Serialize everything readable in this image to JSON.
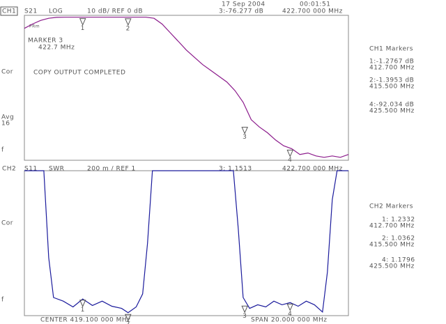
{
  "header": {
    "date": "17 Sep 2004",
    "time": "00:01:51"
  },
  "chart_data": [
    {
      "type": "line",
      "channel": "CH1",
      "parameter": "S21",
      "format": "LOG",
      "scale": "10 dB/ REF 0 dB",
      "readout": [
        "3:-76.277 dB",
        "422.700 000 MHz"
      ],
      "annotations": [
        "PRm",
        "MARKER 3",
        "422.7 MHz",
        "COPY OUTPUT COMPLETED"
      ],
      "side_labels": [
        "Cor",
        "Avg",
        "16",
        "f"
      ],
      "marker_panel": {
        "title": "CH1 Markers",
        "lines": [
          "1:-1.2767 dB",
          "412.700 MHz",
          "2:-1.3953 dB",
          "415.500 MHz",
          "4:-92.034 dB",
          "425.500 MHz"
        ]
      },
      "xlim": [
        409.1,
        429.1
      ],
      "ylim": [
        -100,
        0
      ],
      "x": [
        409.1,
        409.6,
        410.1,
        410.6,
        411.1,
        411.6,
        412.1,
        412.6,
        413.1,
        413.6,
        414.1,
        414.6,
        415.1,
        415.6,
        416.1,
        416.6,
        417.1,
        417.6,
        418.1,
        418.6,
        419.1,
        419.6,
        420.1,
        420.6,
        421.1,
        421.6,
        422.1,
        422.6,
        423.1,
        423.6,
        424.1,
        424.6,
        425.1,
        425.6,
        426.1,
        426.6,
        427.1,
        427.6,
        428.1,
        428.6,
        429.1
      ],
      "series": [
        {
          "color": "#8b1a8b",
          "values": [
            -9,
            -6,
            -3.5,
            -2,
            -1.4,
            -1.3,
            -1.3,
            -1.3,
            -1.3,
            -1.3,
            -1.3,
            -1.3,
            -1.3,
            -1.3,
            -1.3,
            -1.3,
            -2,
            -6,
            -12,
            -18,
            -24,
            -29,
            -34,
            -38,
            -42,
            -46,
            -52,
            -60,
            -72,
            -77,
            -81,
            -86,
            -90,
            -92,
            -96,
            -95,
            -97,
            -98,
            -97,
            -98,
            -96
          ]
        }
      ],
      "markers": [
        {
          "label": "1",
          "x": 412.7,
          "y": -1.2767
        },
        {
          "label": "2",
          "x": 415.5,
          "y": -1.3953
        },
        {
          "label": "3",
          "x": 422.7,
          "y": -76.277
        },
        {
          "label": "4",
          "x": 425.5,
          "y": -92.034
        }
      ]
    },
    {
      "type": "line",
      "channel": "CH2",
      "parameter": "S11",
      "format": "SWR",
      "scale": "200 m / REF 1",
      "readout": [
        "3: 1.1513",
        "422.700 000 MHz"
      ],
      "annotations": [],
      "side_labels": [
        "Cor",
        "f"
      ],
      "marker_panel": {
        "title": "CH2 Markers",
        "lines": [
          "1: 1.2332",
          "412.700 MHz",
          "2: 1.0362",
          "415.500 MHz",
          "4: 1.1796",
          "425.500 MHz"
        ]
      },
      "xlim": [
        409.1,
        429.1
      ],
      "ylim": [
        1,
        3
      ],
      "x": [
        409.1,
        410.3,
        410.6,
        410.9,
        411.5,
        412.1,
        412.7,
        413.3,
        413.9,
        414.5,
        415.1,
        415.5,
        416.0,
        416.4,
        416.7,
        417.0,
        419.5,
        422.0,
        422.3,
        422.6,
        423.0,
        423.5,
        424.0,
        424.5,
        425.0,
        425.5,
        426.0,
        426.5,
        427.0,
        427.5,
        427.8,
        428.1,
        428.4,
        429.1
      ],
      "series": [
        {
          "color": "#1a1a9c",
          "values": [
            3,
            3,
            1.8,
            1.25,
            1.2,
            1.12,
            1.23,
            1.14,
            1.2,
            1.13,
            1.1,
            1.04,
            1.12,
            1.3,
            2.0,
            3,
            3,
            3,
            2.2,
            1.25,
            1.1,
            1.15,
            1.12,
            1.2,
            1.15,
            1.18,
            1.13,
            1.2,
            1.15,
            1.05,
            1.6,
            2.6,
            3,
            3
          ]
        }
      ],
      "markers": [
        {
          "label": "1",
          "x": 412.7,
          "y": 1.2332
        },
        {
          "label": "2",
          "x": 415.5,
          "y": 1.0362
        },
        {
          "label": "3",
          "x": 422.7,
          "y": 1.1513
        },
        {
          "label": "4",
          "x": 425.5,
          "y": 1.1796
        }
      ]
    }
  ],
  "footer": {
    "center": "CENTER 419.100 000 MHz",
    "span": "SPAN 20.000 000 MHz"
  }
}
